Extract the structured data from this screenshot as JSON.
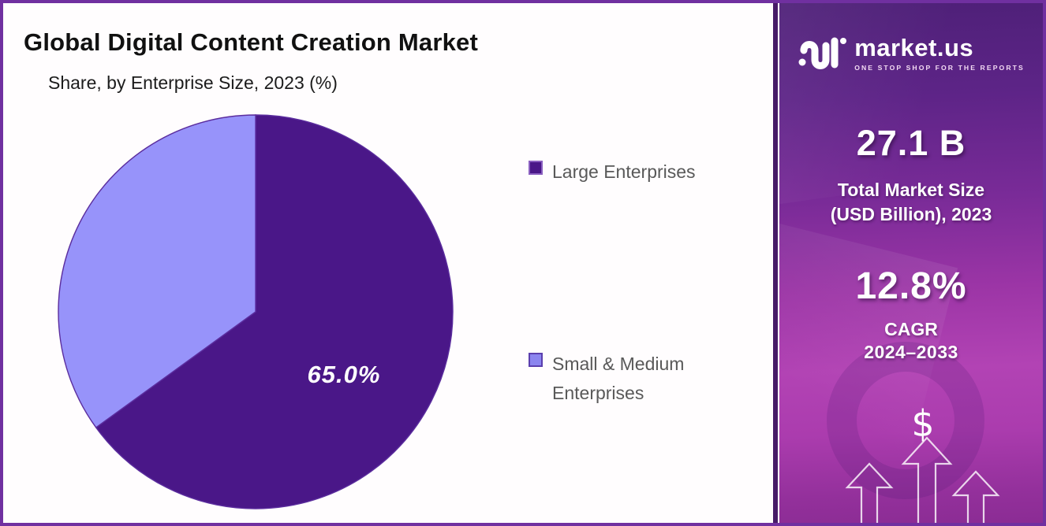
{
  "header": {
    "title": "Global Digital Content Creation Market",
    "subtitle": "Share, by Enterprise Size, 2023 (%)"
  },
  "chart_data": {
    "type": "pie",
    "title": "Global Digital Content Creation Market",
    "subtitle": "Share, by Enterprise Size, 2023 (%)",
    "labels": [
      "Large Enterprises",
      "Small & Medium Enterprises"
    ],
    "values": [
      65.0,
      35.0
    ],
    "colors": [
      "#4a1788",
      "#9793fa"
    ],
    "slice_stroke": "#5b2d9e",
    "data_label": "65.0%",
    "data_label_slice": 0,
    "start_angle_deg": 0,
    "clockwise": true,
    "legend_position": "right"
  },
  "legend": {
    "items": [
      {
        "label": "Large Enterprises",
        "color": "#4a1788",
        "border": "#8a5fc0"
      },
      {
        "label": "Small & Medium Enterprises",
        "color": "#8b85ef",
        "border": "#5b3fae"
      }
    ]
  },
  "panel": {
    "brand": "market.us",
    "tagline": "ONE STOP SHOP FOR THE REPORTS",
    "stats": [
      {
        "value": "27.1 B",
        "label_line1": "Total Market Size",
        "label_line2": "(USD Billion), 2023"
      },
      {
        "value": "12.8%",
        "label_line1": "CAGR",
        "label_line2": "2024–2033"
      }
    ],
    "dollar_sign": "$",
    "accent_top": "#4e2078",
    "accent_mid": "#b243b4",
    "accent_bottom": "#8b2c94"
  }
}
